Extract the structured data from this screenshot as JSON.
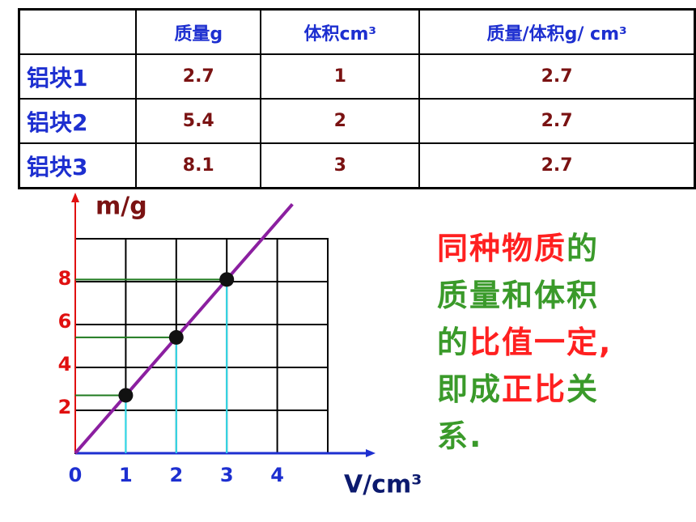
{
  "table": {
    "header": [
      "质量g",
      "体积cm³",
      "质量/体积g/ cm³"
    ],
    "rows": [
      [
        "铝块1",
        "2.7",
        "1",
        "2.7"
      ],
      [
        "铝块2",
        "5.4",
        "2",
        "2.7"
      ],
      [
        "铝块3",
        "8.1",
        "3",
        "2.7"
      ]
    ]
  },
  "chart_data": {
    "type": "scatter",
    "x_label": "V/cm³",
    "y_label": "m/g",
    "x": [
      1,
      2,
      3
    ],
    "values": [
      2.7,
      5.4,
      8.1
    ],
    "color": "#111111",
    "line_color": "#8b1fa0",
    "xlim": [
      0,
      5
    ],
    "ylim": [
      0,
      10
    ],
    "xticks": [
      0,
      1,
      2,
      3,
      4
    ],
    "yticks": [
      2,
      4,
      6,
      8
    ],
    "grid": true
  },
  "note": {
    "lines": [
      [
        {
          "text": "同种物质",
          "color": "#ff2020"
        },
        {
          "text": "的",
          "color": "#3a9a2a"
        }
      ],
      [
        {
          "text": "质量和体积",
          "color": "#3a9a2a"
        }
      ],
      [
        {
          "text": "的",
          "color": "#3a9a2a"
        },
        {
          "text": "比值一定,",
          "color": "#ff2020"
        }
      ],
      [
        {
          "text": "即成",
          "color": "#3a9a2a"
        },
        {
          "text": "正比",
          "color": "#ff2020"
        },
        {
          "text": "关",
          "color": "#3a9a2a"
        }
      ],
      [
        {
          "text": "系.",
          "color": "#3a9a2a"
        }
      ]
    ]
  }
}
